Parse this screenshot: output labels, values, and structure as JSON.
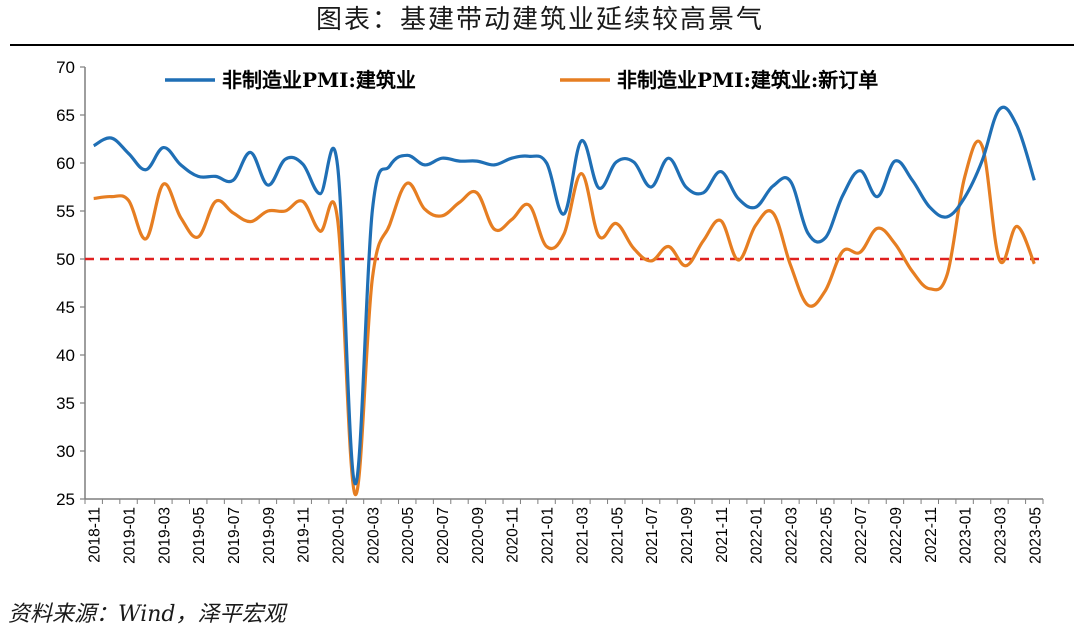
{
  "title": "图表：基建带动建筑业延续较高景气",
  "source": "资料来源：Wind，泽平宏观",
  "chart_data": {
    "type": "line",
    "title": "图表：基建带动建筑业延续较高景气",
    "ylim": [
      25,
      70
    ],
    "yticks": [
      25,
      30,
      35,
      40,
      45,
      50,
      55,
      60,
      65,
      70
    ],
    "grid": false,
    "legend_position": "top",
    "x": [
      "2018-11",
      "2018-12",
      "2019-01",
      "2019-02",
      "2019-03",
      "2019-04",
      "2019-05",
      "2019-06",
      "2019-07",
      "2019-08",
      "2019-09",
      "2019-10",
      "2019-11",
      "2019-12",
      "2020-01",
      "2020-02",
      "2020-03",
      "2020-04",
      "2020-05",
      "2020-06",
      "2020-07",
      "2020-08",
      "2020-09",
      "2020-10",
      "2020-11",
      "2020-12",
      "2021-01",
      "2021-02",
      "2021-03",
      "2021-04",
      "2021-05",
      "2021-06",
      "2021-07",
      "2021-08",
      "2021-09",
      "2021-10",
      "2021-11",
      "2021-12",
      "2022-01",
      "2022-02",
      "2022-03",
      "2022-04",
      "2022-05",
      "2022-06",
      "2022-07",
      "2022-08",
      "2022-09",
      "2022-10",
      "2022-11",
      "2022-12",
      "2023-01",
      "2023-02",
      "2023-03",
      "2023-04",
      "2023-05"
    ],
    "xtick_labels": [
      "2018-11",
      "2019-01",
      "2019-03",
      "2019-05",
      "2019-07",
      "2019-09",
      "2019-11",
      "2020-01",
      "2020-03",
      "2020-05",
      "2020-07",
      "2020-09",
      "2020-11",
      "2021-01",
      "2021-03",
      "2021-05",
      "2021-07",
      "2021-09",
      "2021-11",
      "2022-01",
      "2022-03",
      "2022-05",
      "2022-07",
      "2022-09",
      "2022-11",
      "2023-01",
      "2023-03",
      "2023-05"
    ],
    "series": [
      {
        "name": "非制造业PMI:建筑业",
        "color": "#1f6fb5",
        "values": [
          61.8,
          62.6,
          61.0,
          59.3,
          61.6,
          59.8,
          58.6,
          58.6,
          58.2,
          61.1,
          57.7,
          60.4,
          59.9,
          56.8,
          59.7,
          26.6,
          55.1,
          59.7,
          60.8,
          59.8,
          60.5,
          60.2,
          60.2,
          59.8,
          60.5,
          60.7,
          60.0,
          54.7,
          62.3,
          57.4,
          60.1,
          60.1,
          57.5,
          60.5,
          57.5,
          56.9,
          59.1,
          56.3,
          55.4,
          57.6,
          58.1,
          52.7,
          52.2,
          56.6,
          59.2,
          56.5,
          60.2,
          58.2,
          55.4,
          54.4,
          56.4,
          60.2,
          65.6,
          63.9,
          58.2
        ]
      },
      {
        "name": "非制造业PMI:建筑业:新订单",
        "color": "#e67e22",
        "values": [
          56.3,
          56.5,
          56.1,
          52.1,
          57.8,
          54.3,
          52.3,
          56.0,
          54.8,
          53.9,
          55.0,
          55.0,
          56.0,
          52.9,
          54.1,
          25.5,
          48.0,
          53.6,
          57.9,
          55.2,
          54.5,
          55.9,
          56.9,
          53.1,
          54.1,
          55.6,
          51.3,
          52.6,
          58.9,
          52.4,
          53.7,
          51.1,
          49.8,
          51.3,
          49.3,
          51.9,
          54.0,
          49.9,
          53.5,
          54.8,
          49.4,
          45.2,
          46.7,
          50.8,
          50.7,
          53.2,
          51.6,
          48.7,
          46.9,
          48.4,
          58.5,
          61.8,
          49.9,
          53.4,
          49.5
        ]
      }
    ],
    "reference_line": {
      "y": 50,
      "color": "#e02020",
      "style": "dashed"
    },
    "colors": {
      "axis": "#7f7f7f",
      "text": "#000000"
    }
  }
}
